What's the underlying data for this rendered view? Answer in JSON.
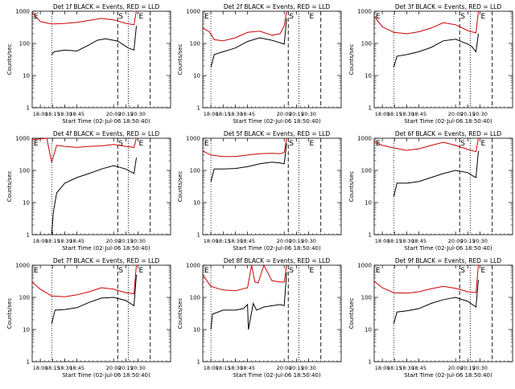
{
  "chart_data": [
    {
      "type": "line",
      "title": "Det 1f BLACK = Events, RED = LLD",
      "xlabel": "Start Time (02-Jul-06 18:50:40)",
      "ylabel": "Counts/sec",
      "yscale": "log",
      "ylim": [
        1,
        1000
      ],
      "xlim_minutes_from_17_50": [
        0,
        170
      ],
      "x_tick_labels": [
        "18:00",
        "18:15",
        "18:30",
        "18:45",
        "20:00",
        "20:15",
        "20:30"
      ],
      "y_tick_labels": [
        "1",
        "10",
        "100",
        "1000"
      ],
      "markers": [
        {
          "label": "E",
          "style": "corner"
        },
        {
          "label": "S",
          "style": "dashed"
        },
        {
          "label": "E",
          "style": "dotted"
        }
      ],
      "series": [
        {
          "color": "#000000",
          "x": [
            24,
            27,
            40,
            55,
            70,
            80,
            90,
            105,
            118,
            125,
            128
          ],
          "y": [
            45,
            55,
            62,
            58,
            90,
            125,
            140,
            118,
            72,
            62,
            350
          ]
        },
        {
          "color": "#cc0000",
          "x": [
            0,
            10,
            24,
            40,
            55,
            70,
            85,
            100,
            115,
            125,
            128
          ],
          "y": [
            900,
            480,
            400,
            420,
            450,
            520,
            600,
            540,
            420,
            380,
            1000
          ]
        }
      ]
    },
    {
      "type": "line",
      "title": "Det 2f BLACK = Events, RED = LLD",
      "xlabel": "Start Time (02-Jul-06 18:50:40)",
      "ylabel": "Counts/sec",
      "yscale": "log",
      "ylim": [
        1,
        1000
      ],
      "x_tick_labels": [
        "18:00",
        "18:15",
        "18:30",
        "18:45",
        "20:00",
        "20:15",
        "20:30"
      ],
      "y_tick_labels": [
        "1",
        "10",
        "100",
        "1000"
      ],
      "markers": [
        {
          "label": "E",
          "style": "corner"
        },
        {
          "label": "S",
          "style": "dashed"
        },
        {
          "label": "E",
          "style": "dotted"
        }
      ],
      "series": [
        {
          "color": "#000000",
          "x": [
            10,
            14,
            25,
            40,
            55,
            70,
            85,
            95,
            100,
            103
          ],
          "y": [
            18,
            45,
            55,
            72,
            115,
            150,
            125,
            105,
            95,
            600
          ]
        },
        {
          "color": "#cc0000",
          "x": [
            0,
            8,
            14,
            25,
            40,
            55,
            70,
            85,
            95,
            100,
            103
          ],
          "y": [
            300,
            230,
            130,
            120,
            150,
            220,
            240,
            180,
            200,
            350,
            1000
          ]
        }
      ]
    },
    {
      "type": "line",
      "title": "Det 3f BLACK = Events, RED = LLD",
      "xlabel": "Start Time (02-Jul-06 18:50:40)",
      "ylabel": "Counts/sec",
      "yscale": "log",
      "ylim": [
        1,
        1000
      ],
      "x_tick_labels": [
        "18:00",
        "18:15",
        "18:30",
        "18:45",
        "20:00",
        "20:15",
        "20:30"
      ],
      "y_tick_labels": [
        "1",
        "10",
        "100",
        "1000"
      ],
      "markers": [
        {
          "label": "E",
          "style": "corner"
        },
        {
          "label": "S",
          "style": "dashed"
        },
        {
          "label": "E",
          "style": "dotted"
        }
      ],
      "series": [
        {
          "color": "#000000",
          "x": [
            24,
            28,
            40,
            55,
            70,
            85,
            100,
            115,
            120,
            125,
            128
          ],
          "y": [
            18,
            40,
            45,
            55,
            75,
            120,
            135,
            95,
            80,
            55,
            200
          ]
        },
        {
          "color": "#cc0000",
          "x": [
            0,
            10,
            24,
            40,
            55,
            70,
            85,
            100,
            115,
            125,
            128
          ],
          "y": [
            700,
            330,
            220,
            200,
            230,
            300,
            440,
            380,
            250,
            210,
            1000
          ]
        }
      ]
    },
    {
      "type": "line",
      "title": "Det 4f BLACK = Events, RED = LLD",
      "xlabel": "Start Time (02-Jul-06 18:50:40)",
      "ylabel": "Counts/sec",
      "yscale": "log",
      "ylim": [
        1,
        1000
      ],
      "x_tick_labels": [
        "18:00",
        "18:15",
        "18:30",
        "18:45",
        "20:00",
        "20:15",
        "20:30"
      ],
      "y_tick_labels": [
        "1",
        "10",
        "100",
        "1000"
      ],
      "markers": [
        {
          "label": "E",
          "style": "corner"
        },
        {
          "label": "S",
          "style": "dashed"
        },
        {
          "label": "E",
          "style": "dotted"
        }
      ],
      "series": [
        {
          "color": "#000000",
          "x": [
            24,
            26,
            30,
            40,
            55,
            70,
            85,
            100,
            115,
            125,
            128
          ],
          "y": [
            1,
            5,
            20,
            40,
            60,
            80,
            110,
            140,
            110,
            80,
            250
          ]
        },
        {
          "color": "#cc0000",
          "x": [
            0,
            10,
            18,
            22,
            24,
            30,
            40,
            55,
            70,
            85,
            100,
            115,
            125,
            128
          ],
          "y": [
            900,
            950,
            1000,
            300,
            180,
            600,
            560,
            520,
            560,
            580,
            640,
            560,
            520,
            1000
          ]
        }
      ]
    },
    {
      "type": "line",
      "title": "Det 5f BLACK = Events, RED = LLD",
      "xlabel": "Start Time (02-Jul-06 18:50:40)",
      "ylabel": "Counts/sec",
      "yscale": "log",
      "ylim": [
        1,
        1000
      ],
      "x_tick_labels": [
        "18:00",
        "18:15",
        "18:30",
        "18:45",
        "20:00",
        "20:15",
        "20:30"
      ],
      "y_tick_labels": [
        "1",
        "10",
        "100",
        "1000"
      ],
      "markers": [
        {
          "label": "E",
          "style": "corner"
        },
        {
          "label": "S",
          "style": "dashed"
        },
        {
          "label": "E",
          "style": "dotted"
        }
      ],
      "series": [
        {
          "color": "#000000",
          "x": [
            10,
            14,
            25,
            40,
            55,
            70,
            85,
            95,
            100,
            103
          ],
          "y": [
            45,
            110,
            110,
            115,
            130,
            160,
            180,
            170,
            160,
            700
          ]
        },
        {
          "color": "#cc0000",
          "x": [
            0,
            10,
            25,
            40,
            55,
            70,
            85,
            95,
            100,
            103
          ],
          "y": [
            400,
            300,
            270,
            270,
            300,
            330,
            340,
            330,
            360,
            1000
          ]
        }
      ]
    },
    {
      "type": "line",
      "title": "Det 6f BLACK = Events, RED = LLD",
      "xlabel": "Start Time (02-Jul-06 18:50:40)",
      "ylabel": "Counts/sec",
      "yscale": "log",
      "ylim": [
        1,
        1000
      ],
      "x_tick_labels": [
        "18:00",
        "18:15",
        "18:30",
        "18:45",
        "20:00",
        "20:15",
        "20:30"
      ],
      "y_tick_labels": [
        "1",
        "10",
        "100",
        "1000"
      ],
      "markers": [
        {
          "label": "E",
          "style": "corner"
        },
        {
          "label": "S",
          "style": "dashed"
        },
        {
          "label": "E",
          "style": "dotted"
        }
      ],
      "series": [
        {
          "color": "#000000",
          "x": [
            24,
            28,
            40,
            55,
            70,
            85,
            100,
            115,
            120,
            125,
            128
          ],
          "y": [
            15,
            40,
            40,
            45,
            60,
            80,
            100,
            85,
            70,
            60,
            400
          ]
        },
        {
          "color": "#cc0000",
          "x": [
            0,
            10,
            24,
            40,
            55,
            70,
            85,
            100,
            115,
            125,
            128
          ],
          "y": [
            800,
            600,
            500,
            420,
            470,
            600,
            750,
            600,
            450,
            380,
            1000
          ]
        }
      ]
    },
    {
      "type": "line",
      "title": "Det 7f BLACK = Events, RED = LLD",
      "xlabel": "Start Time (02-Jul-06 18:50:40)",
      "ylabel": "Counts/sec",
      "yscale": "log",
      "ylim": [
        1,
        1000
      ],
      "x_tick_labels": [
        "18:00",
        "18:15",
        "18:30",
        "18:45",
        "20:00",
        "20:15",
        "20:30"
      ],
      "y_tick_labels": [
        "1",
        "10",
        "100",
        "1000"
      ],
      "markers": [
        {
          "label": "E",
          "style": "corner"
        },
        {
          "label": "S",
          "style": "dashed"
        },
        {
          "label": "E",
          "style": "dotted"
        }
      ],
      "series": [
        {
          "color": "#000000",
          "x": [
            24,
            28,
            40,
            55,
            70,
            85,
            100,
            115,
            125,
            128
          ],
          "y": [
            15,
            40,
            42,
            48,
            70,
            95,
            100,
            80,
            55,
            500
          ]
        },
        {
          "color": "#cc0000",
          "x": [
            0,
            10,
            24,
            40,
            55,
            70,
            85,
            100,
            115,
            125,
            128
          ],
          "y": [
            300,
            180,
            110,
            105,
            120,
            150,
            200,
            180,
            140,
            130,
            1000
          ]
        }
      ]
    },
    {
      "type": "line",
      "title": "Det 8f BLACK = Events, RED = LLD",
      "xlabel": "Start Time (02-Jul-06 18:50:40)",
      "ylabel": "Counts/sec",
      "yscale": "log",
      "ylim": [
        1,
        1000
      ],
      "x_tick_labels": [
        "18:00",
        "18:15",
        "18:30",
        "18:45",
        "20:00",
        "20:15",
        "20:30"
      ],
      "y_tick_labels": [
        "1",
        "10",
        "100",
        "1000"
      ],
      "markers": [
        {
          "label": "E",
          "style": "corner"
        },
        {
          "label": "S",
          "style": "dashed"
        },
        {
          "label": "E",
          "style": "dotted"
        }
      ],
      "series": [
        {
          "color": "#000000",
          "x": [
            10,
            12,
            25,
            40,
            50,
            55,
            56,
            62,
            66,
            75,
            85,
            95,
            100,
            103
          ],
          "y": [
            10,
            30,
            40,
            40,
            45,
            60,
            10,
            65,
            40,
            50,
            55,
            60,
            55,
            600
          ]
        },
        {
          "color": "#cc0000",
          "x": [
            0,
            10,
            25,
            40,
            55,
            60,
            64,
            68,
            75,
            85,
            95,
            100,
            103
          ],
          "y": [
            500,
            220,
            170,
            160,
            200,
            1000,
            300,
            280,
            1000,
            330,
            300,
            300,
            1000
          ]
        }
      ]
    },
    {
      "type": "line",
      "title": "Det 9f BLACK = Events, RED = LLD",
      "xlabel": "Start Time (02-Jul-06 18:50:40)",
      "ylabel": "Counts/sec",
      "yscale": "log",
      "ylim": [
        1,
        1000
      ],
      "x_tick_labels": [
        "18:00",
        "18:15",
        "18:30",
        "18:45",
        "20:00",
        "20:15",
        "20:30"
      ],
      "y_tick_labels": [
        "1",
        "10",
        "100",
        "1000"
      ],
      "markers": [
        {
          "label": "E",
          "style": "corner"
        },
        {
          "label": "S",
          "style": "dashed"
        },
        {
          "label": "E",
          "style": "dotted"
        }
      ],
      "series": [
        {
          "color": "#000000",
          "x": [
            24,
            28,
            40,
            55,
            70,
            85,
            100,
            115,
            125,
            128
          ],
          "y": [
            15,
            35,
            38,
            45,
            65,
            85,
            100,
            75,
            50,
            350
          ]
        },
        {
          "color": "#cc0000",
          "x": [
            0,
            10,
            24,
            40,
            55,
            70,
            85,
            100,
            115,
            125,
            128
          ],
          "y": [
            320,
            200,
            140,
            135,
            150,
            185,
            220,
            190,
            150,
            140,
            1000
          ]
        }
      ]
    }
  ]
}
